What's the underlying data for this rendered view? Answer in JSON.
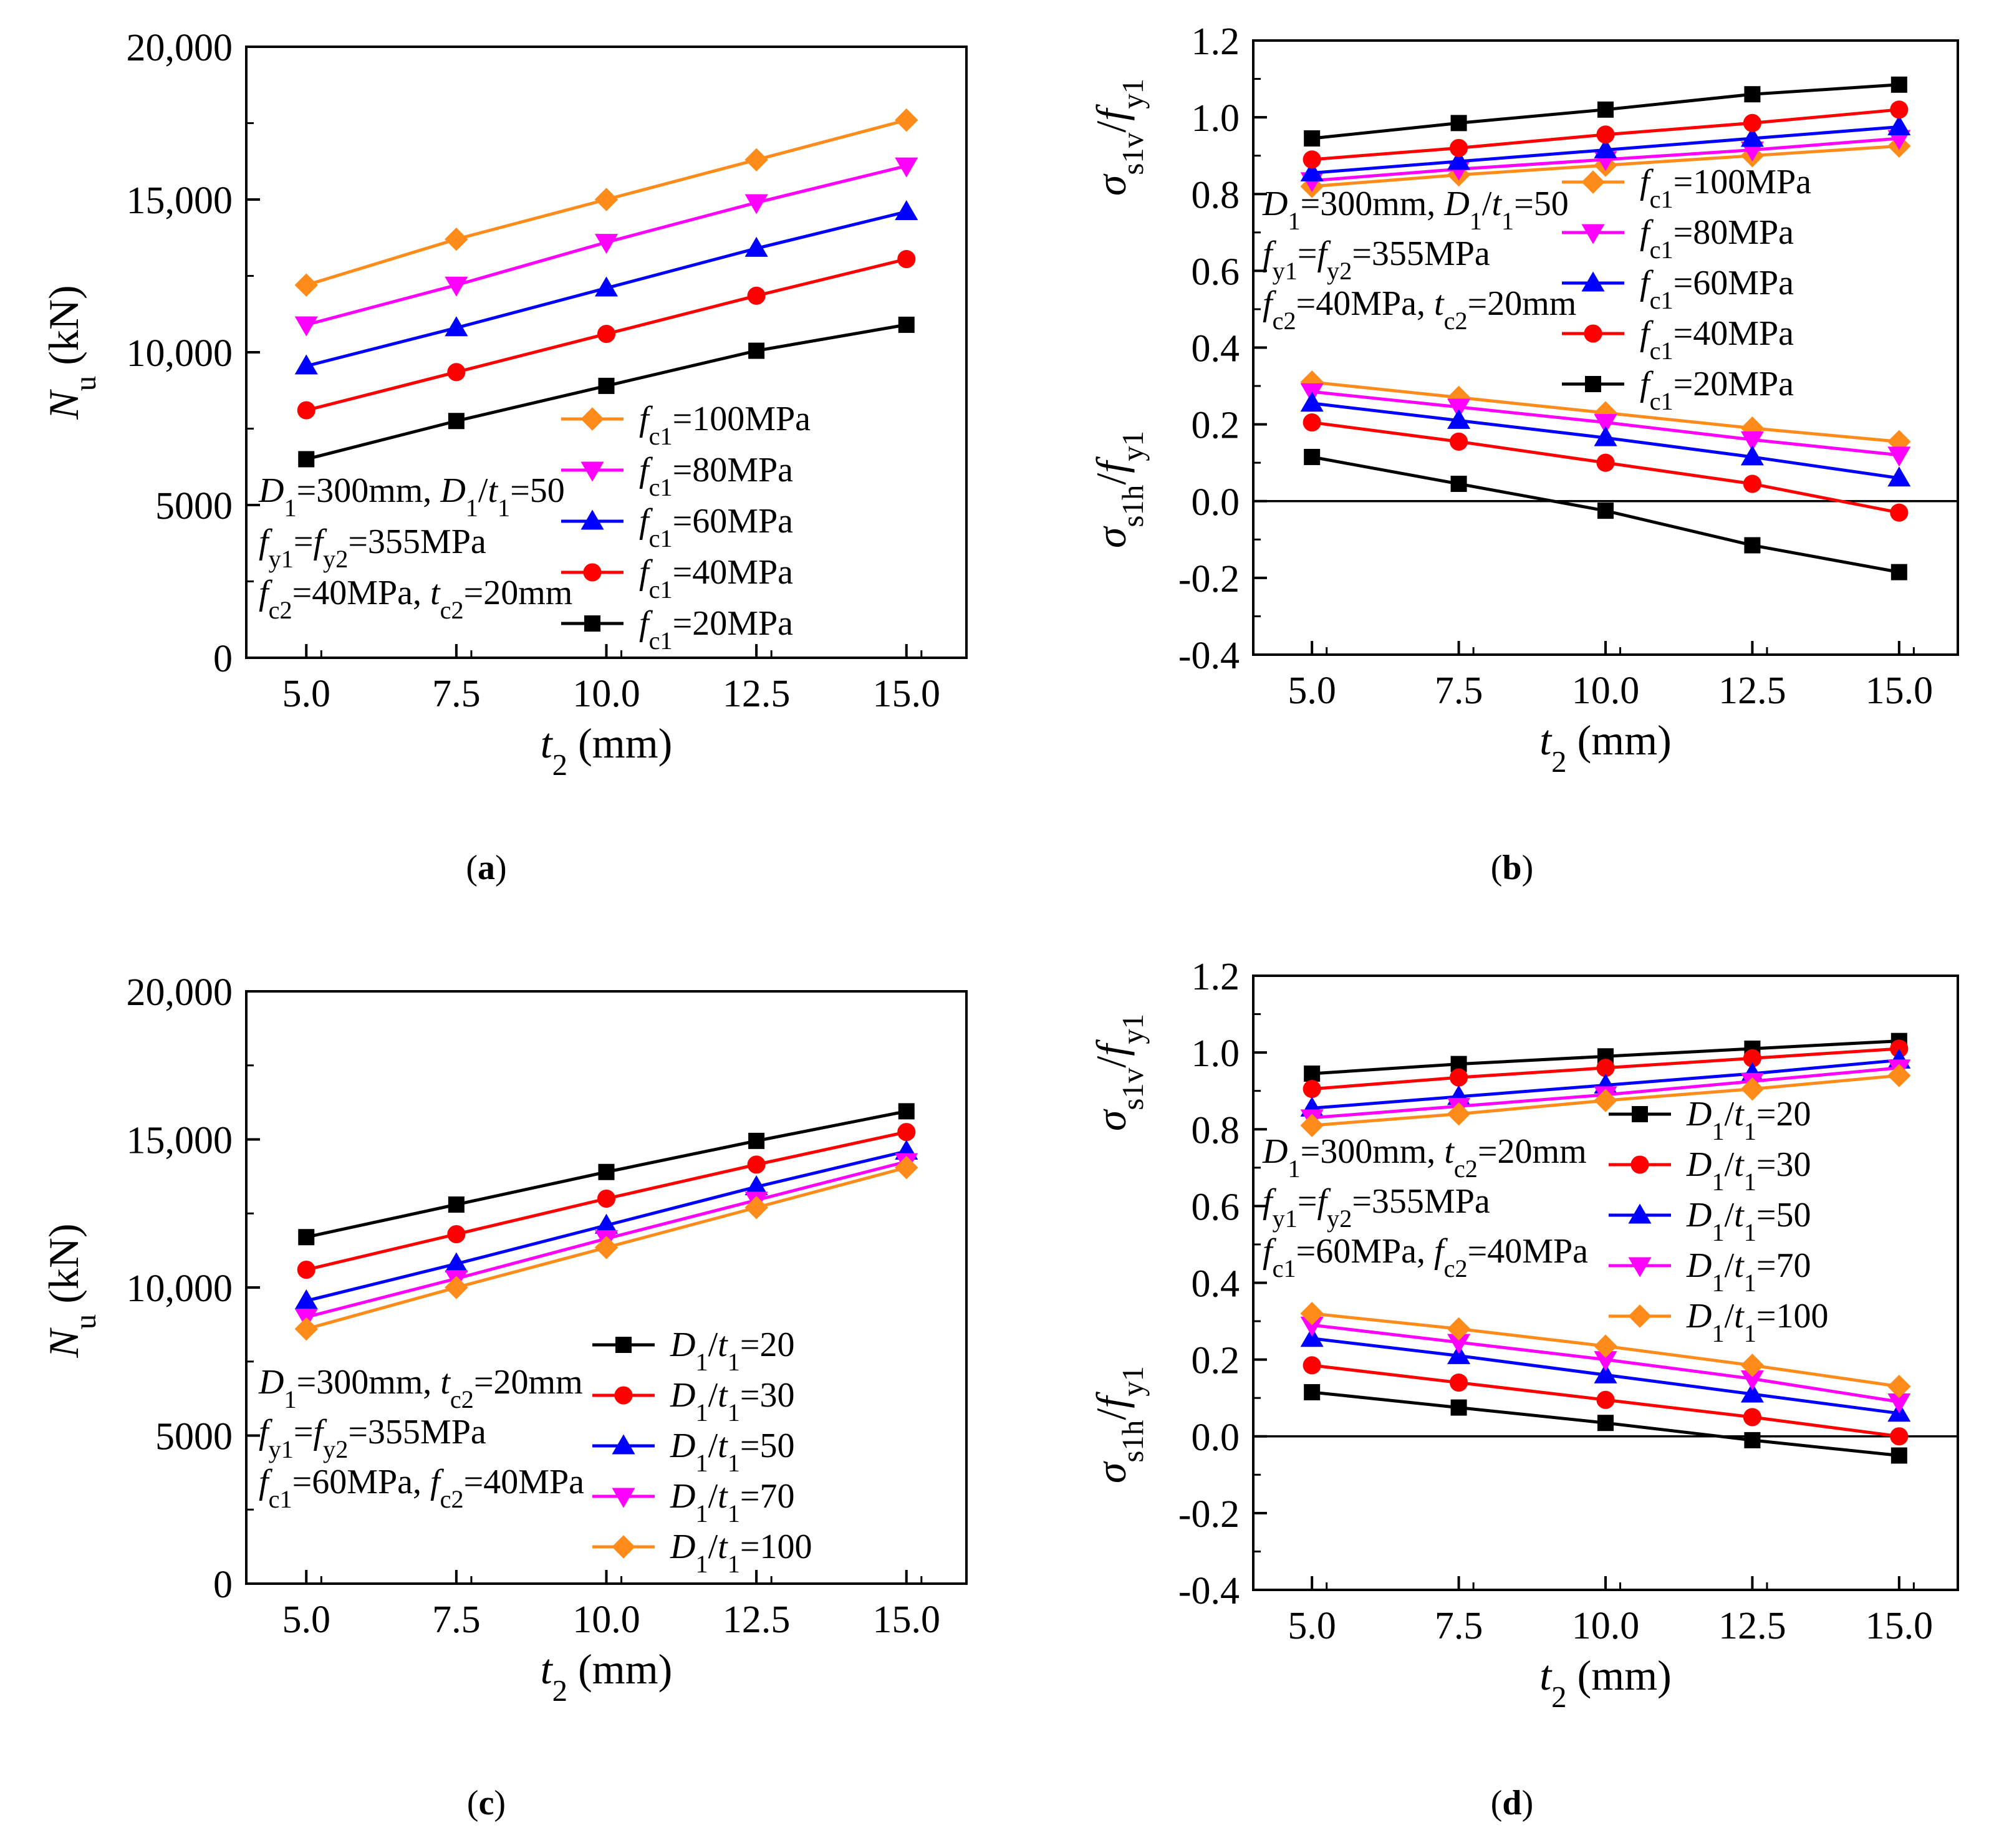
{
  "chart_data": [
    {
      "panel": "(a)",
      "caption": "a",
      "type": "line",
      "x": [
        5.0,
        7.5,
        10.0,
        12.5,
        15.0
      ],
      "xlabel": "t2 (mm)",
      "xticks": [
        "5.0",
        "7.5",
        "10.0",
        "12.5",
        "15.0"
      ],
      "xlim": [
        4.0,
        16.0
      ],
      "ylabel": "Nu (kN)",
      "ylim": [
        0,
        20000
      ],
      "yticks": [
        "0",
        "5000",
        "10,000",
        "15,000",
        "20,000"
      ],
      "annotation": [
        "D1=300mm, D1/t1=50",
        "fy1=fy2=355MPa",
        "fc2=40MPa, tc2=20mm"
      ],
      "series": [
        {
          "name": "fc1=100MPa",
          "color": "#ff8c1a",
          "marker": "diamond",
          "values": [
            12200,
            13700,
            15000,
            16300,
            17600
          ]
        },
        {
          "name": "fc1=80MPa",
          "color": "#ff00ff",
          "marker": "tri-down",
          "values": [
            10900,
            12200,
            13600,
            14900,
            16100
          ]
        },
        {
          "name": "fc1=60MPa",
          "color": "#0000ff",
          "marker": "tri-up",
          "values": [
            9550,
            10800,
            12100,
            13400,
            14600
          ]
        },
        {
          "name": "fc1=40MPa",
          "color": "#ff0000",
          "marker": "circle",
          "values": [
            8100,
            9350,
            10600,
            11850,
            13050
          ]
        },
        {
          "name": "fc1=20MPa",
          "color": "#000000",
          "marker": "square",
          "values": [
            6500,
            7750,
            8900,
            10050,
            10900
          ]
        }
      ]
    },
    {
      "panel": "(b)",
      "caption": "b",
      "type": "line",
      "x": [
        5.0,
        7.5,
        10.0,
        12.5,
        15.0
      ],
      "xlabel": "t2 (mm)",
      "xticks": [
        "5.0",
        "7.5",
        "10.0",
        "12.5",
        "15.0"
      ],
      "xlim": [
        4.0,
        16.0
      ],
      "ylabel_top": "σs1v/fy1",
      "ylabel_bottom": "σs1h/fy1",
      "ylim": [
        -0.4,
        1.2
      ],
      "yticks": [
        "-0.4",
        "-0.2",
        "0.0",
        "0.2",
        "0.4",
        "0.6",
        "0.8",
        "1.0",
        "1.2"
      ],
      "zero_line": true,
      "annotation": [
        "D1=300mm, D1/t1=50",
        "fy1=fy2=355MPa",
        "fc2=40MPa, tc2=20mm"
      ],
      "series": [
        {
          "name": "fc1=100MPa",
          "color": "#ff8c1a",
          "marker": "diamond",
          "values_v": [
            0.82,
            0.85,
            0.875,
            0.9,
            0.925
          ],
          "values_h": [
            0.31,
            0.27,
            0.23,
            0.19,
            0.155
          ]
        },
        {
          "name": "fc1=80MPa",
          "color": "#ff00ff",
          "marker": "tri-down",
          "values_v": [
            0.835,
            0.865,
            0.89,
            0.915,
            0.945
          ],
          "values_h": [
            0.285,
            0.245,
            0.205,
            0.16,
            0.12
          ]
        },
        {
          "name": "fc1=60MPa",
          "color": "#0000ff",
          "marker": "tri-up",
          "values_v": [
            0.855,
            0.885,
            0.915,
            0.945,
            0.975
          ],
          "values_h": [
            0.255,
            0.21,
            0.165,
            0.115,
            0.06
          ]
        },
        {
          "name": "fc1=40MPa",
          "color": "#ff0000",
          "marker": "circle",
          "values_v": [
            0.89,
            0.92,
            0.955,
            0.985,
            1.02
          ],
          "values_h": [
            0.205,
            0.155,
            0.1,
            0.045,
            -0.03
          ]
        },
        {
          "name": "fc1=20MPa",
          "color": "#000000",
          "marker": "square",
          "values_v": [
            0.945,
            0.985,
            1.02,
            1.06,
            1.085
          ],
          "values_h": [
            0.115,
            0.045,
            -0.025,
            -0.115,
            -0.185
          ]
        }
      ]
    },
    {
      "panel": "(c)",
      "caption": "c",
      "type": "line",
      "x": [
        5.0,
        7.5,
        10.0,
        12.5,
        15.0
      ],
      "xlabel": "t2 (mm)",
      "xticks": [
        "5.0",
        "7.5",
        "10.0",
        "12.5",
        "15.0"
      ],
      "xlim": [
        4.0,
        16.0
      ],
      "ylabel": "Nu (kN)",
      "ylim": [
        0,
        20000
      ],
      "yticks": [
        "0",
        "5000",
        "10,000",
        "15,000",
        "20,000"
      ],
      "annotation": [
        "D1=300mm, tc2=20mm",
        "fy1=fy2=355MPa",
        "fc1=60MPa, fc2=40MPa"
      ],
      "series": [
        {
          "name": "D1/t1=20",
          "color": "#000000",
          "marker": "square",
          "values": [
            11700,
            12800,
            13900,
            14950,
            15950
          ]
        },
        {
          "name": "D1/t1=30",
          "color": "#ff0000",
          "marker": "circle",
          "values": [
            10600,
            11800,
            13000,
            14150,
            15250
          ]
        },
        {
          "name": "D1/t1=50",
          "color": "#0000ff",
          "marker": "tri-up",
          "values": [
            9550,
            10800,
            12100,
            13400,
            14600
          ]
        },
        {
          "name": "D1/t1=70",
          "color": "#ff00ff",
          "marker": "tri-down",
          "values": [
            9000,
            10300,
            11650,
            12950,
            14250
          ]
        },
        {
          "name": "D1/t1=100",
          "color": "#ff8c1a",
          "marker": "diamond",
          "values": [
            8600,
            10000,
            11350,
            12700,
            14050
          ]
        }
      ]
    },
    {
      "panel": "(d)",
      "caption": "d",
      "type": "line",
      "x": [
        5.0,
        7.5,
        10.0,
        12.5,
        15.0
      ],
      "xlabel": "t2 (mm)",
      "xticks": [
        "5.0",
        "7.5",
        "10.0",
        "12.5",
        "15.0"
      ],
      "xlim": [
        4.0,
        16.0
      ],
      "ylabel_top": "σs1v/fy1",
      "ylabel_bottom": "σs1h/fy1",
      "ylim": [
        -0.4,
        1.2
      ],
      "yticks": [
        "-0.4",
        "-0.2",
        "0.0",
        "0.2",
        "0.4",
        "0.6",
        "0.8",
        "1.0",
        "1.2"
      ],
      "zero_line": true,
      "annotation": [
        "D1=300mm, tc2=20mm",
        "fy1=fy2=355MPa",
        "fc1=60MPa, fc2=40MPa"
      ],
      "series": [
        {
          "name": "D1/t1=20",
          "color": "#000000",
          "marker": "square",
          "values_v": [
            0.945,
            0.97,
            0.99,
            1.01,
            1.03
          ],
          "values_h": [
            0.115,
            0.075,
            0.035,
            -0.01,
            -0.05
          ]
        },
        {
          "name": "D1/t1=30",
          "color": "#ff0000",
          "marker": "circle",
          "values_v": [
            0.905,
            0.935,
            0.96,
            0.985,
            1.01
          ],
          "values_h": [
            0.185,
            0.14,
            0.095,
            0.05,
            0.0
          ]
        },
        {
          "name": "D1/t1=50",
          "color": "#0000ff",
          "marker": "tri-up",
          "values_v": [
            0.855,
            0.885,
            0.915,
            0.945,
            0.98
          ],
          "values_h": [
            0.255,
            0.21,
            0.16,
            0.11,
            0.06
          ]
        },
        {
          "name": "D1/t1=70",
          "color": "#ff00ff",
          "marker": "tri-down",
          "values_v": [
            0.83,
            0.86,
            0.89,
            0.925,
            0.96
          ],
          "values_h": [
            0.29,
            0.245,
            0.2,
            0.15,
            0.09
          ]
        },
        {
          "name": "D1/t1=100",
          "color": "#ff8c1a",
          "marker": "diamond",
          "values_v": [
            0.81,
            0.84,
            0.875,
            0.905,
            0.94
          ],
          "values_h": [
            0.32,
            0.28,
            0.235,
            0.185,
            0.13
          ]
        }
      ]
    }
  ]
}
